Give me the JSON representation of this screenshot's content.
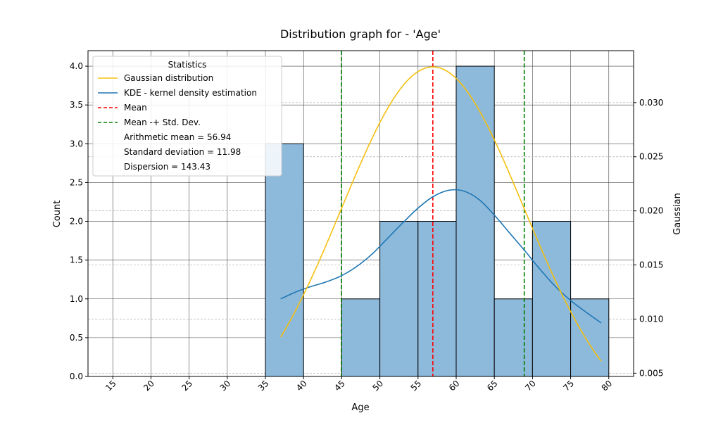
{
  "chart_data": {
    "type": "bar",
    "title": "Distribution graph for - 'Age'",
    "xlabel": "Age",
    "ylabel": "Count",
    "y2label": "Gaussian",
    "xlim": [
      11.75,
      83.25
    ],
    "ylim": [
      0,
      4.2
    ],
    "y2lim": [
      0.0047,
      0.0348
    ],
    "x_ticks": [
      15,
      20,
      25,
      30,
      35,
      40,
      45,
      50,
      55,
      60,
      65,
      70,
      75,
      80
    ],
    "y_ticks": [
      0.0,
      0.5,
      1.0,
      1.5,
      2.0,
      2.5,
      3.0,
      3.5,
      4.0
    ],
    "y_tick_labels": [
      "0.0",
      "0.5",
      "1.0",
      "1.5",
      "2.0",
      "2.5",
      "3.0",
      "3.5",
      "4.0"
    ],
    "y2_ticks": [
      0.005,
      0.01,
      0.015,
      0.02,
      0.025,
      0.03
    ],
    "y2_tick_labels": [
      "0.005",
      "0.010",
      "0.015",
      "0.020",
      "0.025",
      "0.030"
    ],
    "grid": true,
    "bars": [
      {
        "x0": 35,
        "x1": 40,
        "count": 3
      },
      {
        "x0": 40,
        "x1": 45,
        "count": 0
      },
      {
        "x0": 45,
        "x1": 50,
        "count": 1
      },
      {
        "x0": 50,
        "x1": 55,
        "count": 2
      },
      {
        "x0": 55,
        "x1": 60,
        "count": 2
      },
      {
        "x0": 60,
        "x1": 65,
        "count": 4
      },
      {
        "x0": 65,
        "x1": 70,
        "count": 1
      },
      {
        "x0": 70,
        "x1": 75,
        "count": 2
      },
      {
        "x0": 75,
        "x1": 80,
        "count": 1
      }
    ],
    "gaussian": {
      "name": "Gaussian distribution",
      "color": "#f5c00f",
      "mean": 56.94,
      "std": 11.98,
      "x_range": [
        37,
        79
      ]
    },
    "kde": {
      "name": "KDE - kernel density estimation",
      "color": "#1f77b4",
      "x": [
        37,
        39,
        41,
        43,
        45,
        47,
        49,
        51,
        53,
        55,
        57,
        59,
        61,
        63,
        65,
        67,
        69,
        71,
        73,
        75,
        77,
        79
      ],
      "y": [
        1.0,
        1.09,
        1.16,
        1.22,
        1.3,
        1.42,
        1.58,
        1.78,
        1.98,
        2.17,
        2.32,
        2.4,
        2.39,
        2.28,
        2.08,
        1.85,
        1.62,
        1.38,
        1.16,
        0.98,
        0.83,
        0.69
      ]
    },
    "mean_line": {
      "name": "Mean",
      "x": 56.94,
      "color": "#ff0000"
    },
    "std_lines": {
      "name": "Mean -+ Std. Dev.",
      "x": [
        44.96,
        68.92
      ],
      "color": "#008000"
    },
    "legend": {
      "title": "Statistics",
      "placement": "upper-left",
      "stats": [
        "Arithmetic mean = 56.94",
        "Standard deviation = 11.98",
        "Dispersion = 143.43"
      ]
    },
    "colors": {
      "bar_fill": "#8db9db",
      "bar_edge": "#000000"
    }
  }
}
